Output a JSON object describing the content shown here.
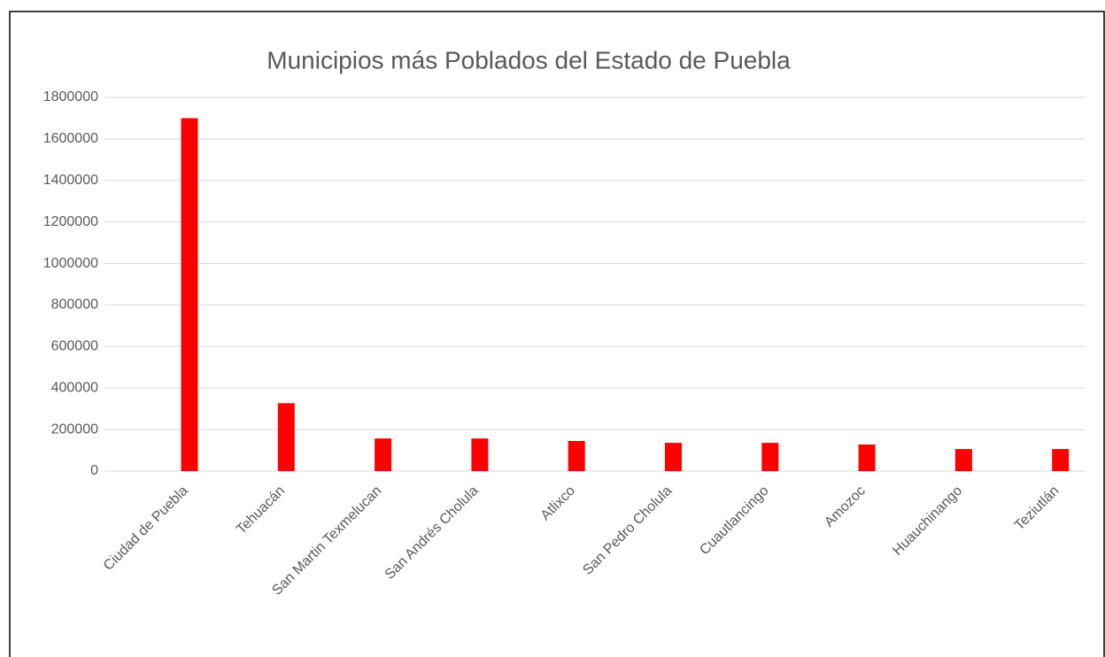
{
  "chart_data": {
    "type": "bar",
    "title": "Municipios más Poblados del Estado de Puebla",
    "categories": [
      "Ciudad de Puebla",
      "Tehuacán",
      "San Martin Texmelucan",
      "San Andrés Cholula",
      "Atlixco",
      "San Pedro Cholula",
      "Cuautlancingo",
      "Amozoc",
      "Huauchinango",
      "Teziutlán"
    ],
    "values": [
      1700000,
      327000,
      157000,
      157000,
      145000,
      136000,
      136000,
      128000,
      106000,
      106000
    ],
    "color": "#ff0000",
    "ylim": [
      0,
      1800000
    ],
    "yticks": [
      0,
      200000,
      400000,
      600000,
      800000,
      1000000,
      1200000,
      1400000,
      1600000,
      1800000
    ],
    "grid": true
  }
}
